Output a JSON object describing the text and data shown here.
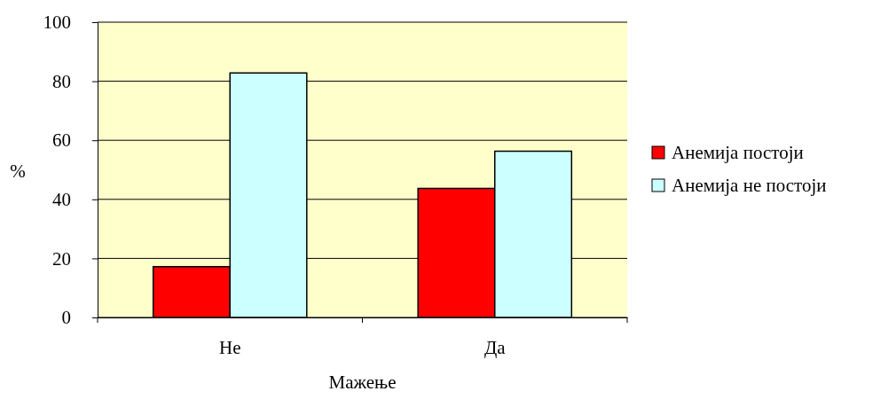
{
  "chart_data": {
    "type": "bar",
    "xlabel": "Мажење",
    "ylabel": "%",
    "categories": [
      "Не",
      "Да"
    ],
    "series": [
      {
        "name": "Анемија постоји",
        "color": "#ff0000",
        "values": [
          17.2,
          43.7
        ]
      },
      {
        "name": "Анемија не постоји",
        "color": "#ccffff",
        "values": [
          82.8,
          56.3
        ]
      }
    ],
    "ylim": [
      0,
      100
    ],
    "yticks": [
      0,
      20,
      40,
      60,
      80,
      100
    ],
    "grid": "y",
    "legend": "right"
  }
}
